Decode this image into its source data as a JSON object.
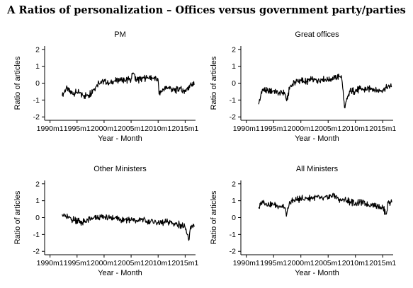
{
  "title": "A Ratios of personalization – Offices versus government party/parties",
  "chart_data": [
    {
      "type": "line",
      "title": "PM",
      "xlabel": "Year - Month",
      "ylabel": "Ratio of articles",
      "xlim": [
        "1989m1",
        "2016m12"
      ],
      "ylim": [
        -2.2,
        2.2
      ],
      "xticks": [
        "1990m1",
        "1995m1",
        "2000m1",
        "2005m1",
        "2010m1",
        "2015m1"
      ],
      "yticks": [
        "-2",
        "-1",
        "0",
        "1",
        "2"
      ],
      "x": [
        "1992m4",
        "1993m1",
        "1994m1",
        "1995m1",
        "1996m1",
        "1997m1",
        "1998m1",
        "1999m1",
        "2000m1",
        "2001m1",
        "2002m1",
        "2003m1",
        "2004m1",
        "2005m1",
        "2005m6",
        "2006m1",
        "2007m1",
        "2008m1",
        "2009m1",
        "2010m1",
        "2010m3",
        "2011m1",
        "2012m1",
        "2013m1",
        "2014m1",
        "2015m1",
        "2016m1",
        "2016m9"
      ],
      "values": [
        -0.75,
        -0.3,
        -0.6,
        -0.55,
        -0.7,
        -0.75,
        -0.4,
        0.05,
        0.1,
        0.0,
        0.15,
        0.2,
        0.15,
        0.25,
        0.6,
        0.2,
        0.25,
        0.35,
        0.3,
        0.2,
        -0.65,
        -0.35,
        -0.25,
        -0.45,
        -0.35,
        -0.5,
        -0.05,
        -0.1
      ]
    },
    {
      "type": "line",
      "title": "Great offices",
      "xlabel": "Year - Month",
      "ylabel": "Ratio of articles",
      "xlim": [
        "1989m1",
        "2016m12"
      ],
      "ylim": [
        -2.2,
        2.2
      ],
      "xticks": [
        "1990m1",
        "1995m1",
        "2000m1",
        "2005m1",
        "2010m1",
        "2015m1"
      ],
      "yticks": [
        "-2",
        "-1",
        "0",
        "1",
        "2"
      ],
      "x": [
        "1992m4",
        "1993m1",
        "1994m1",
        "1995m1",
        "1996m1",
        "1997m1",
        "1997m6",
        "1998m1",
        "1999m1",
        "2000m1",
        "2001m1",
        "2002m1",
        "2003m1",
        "2004m1",
        "2005m1",
        "2006m1",
        "2007m1",
        "2007m6",
        "2007m9",
        "2008m1",
        "2009m1",
        "2010m1",
        "2011m1",
        "2012m1",
        "2013m1",
        "2014m1",
        "2015m1",
        "2016m1",
        "2016m9"
      ],
      "values": [
        -1.25,
        -0.35,
        -0.5,
        -0.45,
        -0.6,
        -0.55,
        -1.05,
        -0.2,
        0.1,
        0.15,
        0.1,
        0.2,
        0.15,
        0.25,
        0.2,
        0.3,
        0.4,
        0.45,
        -0.3,
        -1.45,
        -0.5,
        -0.45,
        -0.35,
        -0.4,
        -0.3,
        -0.45,
        -0.4,
        -0.2,
        -0.2
      ]
    },
    {
      "type": "line",
      "title": "Other Ministers",
      "xlabel": "Year - Month",
      "ylabel": "Ratio of articles",
      "xlim": [
        "1989m1",
        "2016m12"
      ],
      "ylim": [
        -2.2,
        2.2
      ],
      "xticks": [
        "1990m1",
        "1995m1",
        "2000m1",
        "2005m1",
        "2010m1",
        "2015m1"
      ],
      "yticks": [
        "-2",
        "-1",
        "0",
        "1",
        "2"
      ],
      "x": [
        "1992m4",
        "1993m1",
        "1994m1",
        "1995m1",
        "1996m1",
        "1997m1",
        "1998m1",
        "1999m1",
        "2000m1",
        "2001m1",
        "2002m1",
        "2003m1",
        "2004m1",
        "2005m1",
        "2006m1",
        "2007m1",
        "2008m1",
        "2009m1",
        "2010m1",
        "2011m1",
        "2012m1",
        "2013m1",
        "2014m1",
        "2015m1",
        "2015m9",
        "2016m1",
        "2016m9"
      ],
      "values": [
        0.2,
        0.05,
        -0.1,
        -0.15,
        -0.3,
        -0.15,
        -0.05,
        0.0,
        0.05,
        -0.05,
        0.0,
        -0.1,
        -0.1,
        -0.15,
        -0.2,
        -0.1,
        -0.25,
        -0.2,
        -0.3,
        -0.3,
        -0.25,
        -0.35,
        -0.4,
        -0.6,
        -1.35,
        -0.5,
        -0.55
      ]
    },
    {
      "type": "line",
      "title": "All Ministers",
      "xlabel": "Year - Month",
      "ylabel": "Ratio of articles",
      "xlim": [
        "1989m1",
        "2016m12"
      ],
      "ylim": [
        -2.2,
        2.2
      ],
      "xticks": [
        "1990m1",
        "1995m1",
        "2000m1",
        "2005m1",
        "2010m1",
        "2015m1"
      ],
      "yticks": [
        "-2",
        "-1",
        "0",
        "1",
        "2"
      ],
      "x": [
        "1992m4",
        "1993m1",
        "1994m1",
        "1995m1",
        "1996m1",
        "1997m1",
        "1997m6",
        "1998m1",
        "1999m1",
        "2000m1",
        "2001m1",
        "2002m1",
        "2003m1",
        "2004m1",
        "2005m1",
        "2006m1",
        "2007m1",
        "2008m1",
        "2009m1",
        "2010m1",
        "2011m1",
        "2012m1",
        "2013m1",
        "2014m1",
        "2015m1",
        "2015m9",
        "2016m1",
        "2016m9"
      ],
      "values": [
        0.55,
        0.95,
        0.8,
        0.75,
        0.7,
        0.6,
        0.2,
        0.9,
        1.05,
        1.1,
        1.15,
        1.15,
        1.2,
        1.1,
        1.2,
        1.35,
        1.1,
        1.05,
        0.95,
        0.85,
        0.9,
        0.8,
        0.75,
        0.7,
        0.6,
        0.2,
        0.9,
        0.9
      ]
    }
  ]
}
